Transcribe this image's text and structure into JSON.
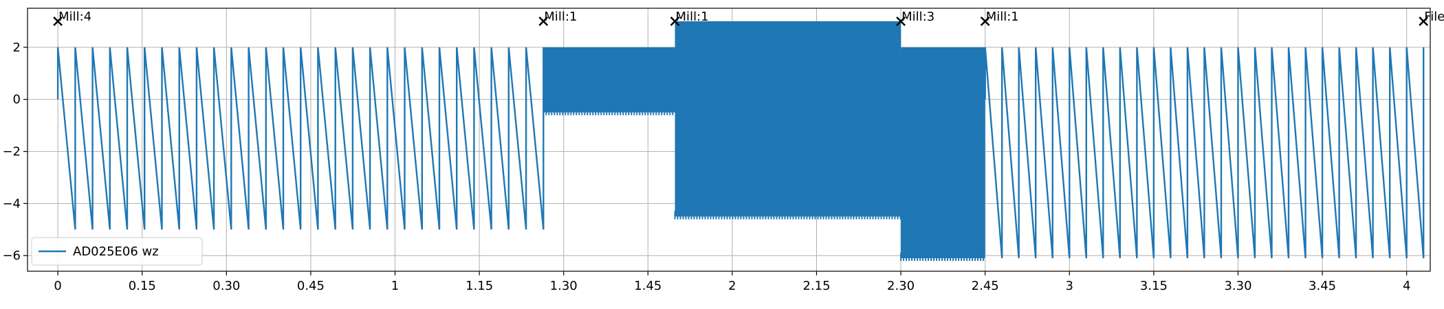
{
  "chart_data": {
    "type": "line",
    "title": "",
    "xlabel": "",
    "ylabel": "",
    "xlim": [
      -0.09,
      4.07
    ],
    "ylim": [
      -6.6,
      3.5
    ],
    "grid": true,
    "legend_location": "lower-left",
    "x_ticks": [
      {
        "pos": 0.0,
        "label": "0"
      },
      {
        "pos": 0.25,
        "label": "0.15"
      },
      {
        "pos": 0.5,
        "label": "0.30"
      },
      {
        "pos": 0.75,
        "label": "0.45"
      },
      {
        "pos": 1.0,
        "label": "1"
      },
      {
        "pos": 1.25,
        "label": "1.15"
      },
      {
        "pos": 1.5,
        "label": "1.30"
      },
      {
        "pos": 1.75,
        "label": "1.45"
      },
      {
        "pos": 2.0,
        "label": "2"
      },
      {
        "pos": 2.25,
        "label": "2.15"
      },
      {
        "pos": 2.5,
        "label": "2.30"
      },
      {
        "pos": 2.75,
        "label": "2.45"
      },
      {
        "pos": 3.0,
        "label": "3"
      },
      {
        "pos": 3.25,
        "label": "3.15"
      },
      {
        "pos": 3.5,
        "label": "3.30"
      },
      {
        "pos": 3.75,
        "label": "3.45"
      },
      {
        "pos": 4.0,
        "label": "4"
      }
    ],
    "y_ticks": [
      {
        "pos": 2,
        "label": "2"
      },
      {
        "pos": 0,
        "label": "0"
      },
      {
        "pos": -2,
        "label": "−2"
      },
      {
        "pos": -4,
        "label": "−4"
      },
      {
        "pos": -6,
        "label": "−6"
      }
    ],
    "series": [
      {
        "name": "AD025E06 wz",
        "color": "#1f77b4",
        "segments": [
          {
            "x_start": 0.0,
            "x_end": 1.44,
            "pattern": "sawtooth",
            "peak": 2.0,
            "trough": -5.0,
            "cycles": 28
          },
          {
            "x_start": 1.44,
            "x_end": 1.83,
            "pattern": "dense",
            "peak": 2.0,
            "trough": -0.5
          },
          {
            "x_start": 1.83,
            "x_end": 2.5,
            "pattern": "dense",
            "peak": 3.0,
            "trough": -4.5
          },
          {
            "x_start": 2.5,
            "x_end": 2.75,
            "pattern": "dense",
            "peak": 2.0,
            "trough": -6.1
          },
          {
            "x_start": 2.75,
            "x_end": 4.05,
            "pattern": "sawtooth",
            "peak": 2.0,
            "trough": -6.1,
            "cycles": 26
          }
        ]
      }
    ],
    "annotations": [
      {
        "x": 0.0,
        "y": 3.0,
        "text": "Mill:4",
        "marker": "x"
      },
      {
        "x": 1.44,
        "y": 3.0,
        "text": "Mill:1",
        "marker": "x"
      },
      {
        "x": 1.83,
        "y": 3.0,
        "text": "Mill:1",
        "marker": "x"
      },
      {
        "x": 2.5,
        "y": 3.0,
        "text": "Mill:3",
        "marker": "x"
      },
      {
        "x": 2.75,
        "y": 3.0,
        "text": "Mill:1",
        "marker": "x"
      },
      {
        "x": 4.05,
        "y": 3.0,
        "text": "File e",
        "marker": "x"
      }
    ]
  }
}
